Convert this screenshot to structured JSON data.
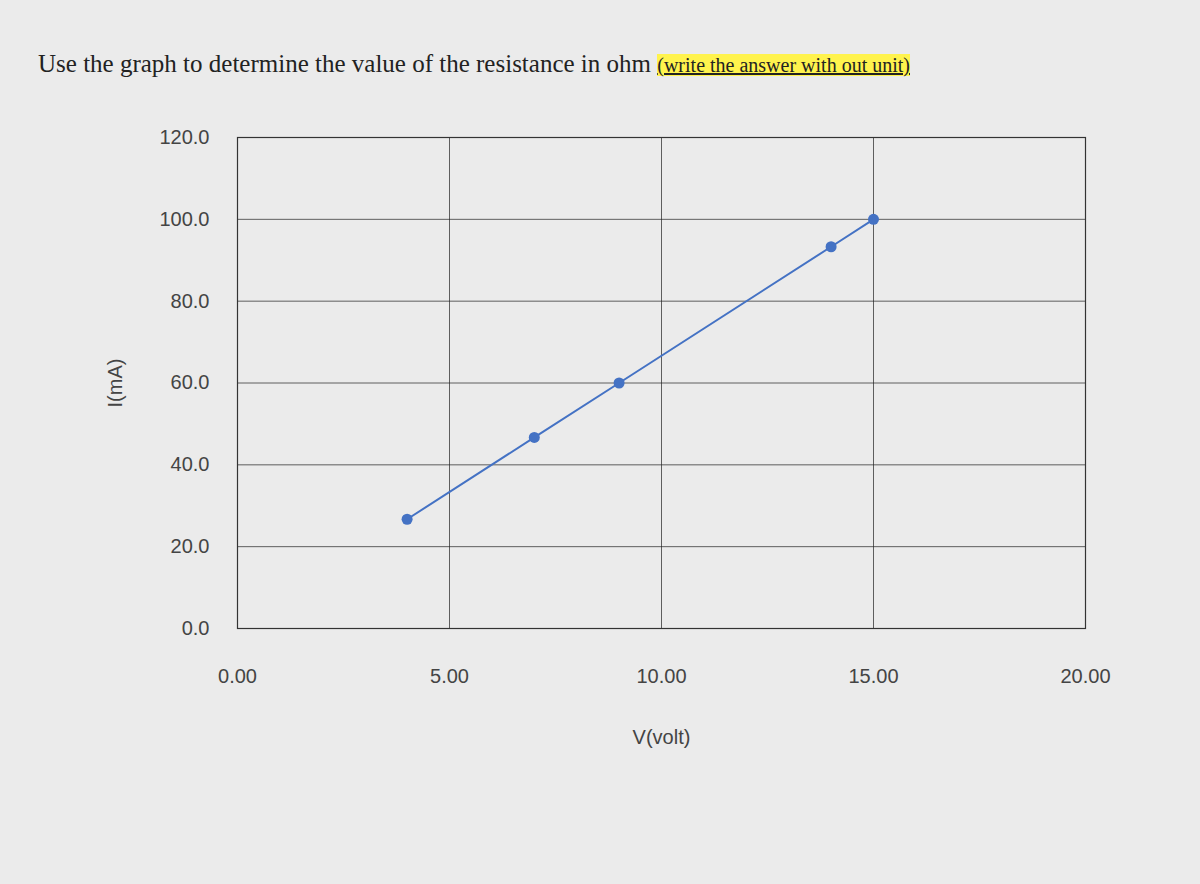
{
  "chart_data": {
    "type": "line",
    "title": "Use the graph to determine the value of the resistance in ohm",
    "annotations": [
      "(write the answer with out unit)"
    ],
    "x_label": "V(volt)",
    "y_label": "I(mA)",
    "x": [
      4,
      7,
      9,
      14,
      15
    ],
    "series": [
      {
        "name": "I",
        "color": "#4472c4",
        "marker": "circle",
        "values": [
          26.7,
          46.7,
          60,
          93.3,
          100
        ]
      }
    ],
    "xlim": [
      0,
      20
    ],
    "xticks": [
      {
        "value": 0,
        "label": "0.00"
      },
      {
        "value": 5,
        "label": "5.00"
      },
      {
        "value": 10,
        "label": "10.00"
      },
      {
        "value": 15,
        "label": "15.00"
      },
      {
        "value": 20,
        "label": "20.00"
      }
    ],
    "ylim": [
      0,
      120
    ],
    "yticks": [
      {
        "value": 0,
        "label": "0.0"
      },
      {
        "value": 20,
        "label": "20.0"
      },
      {
        "value": 40,
        "label": "40.0"
      },
      {
        "value": 60,
        "label": "60.0"
      },
      {
        "value": 80,
        "label": "80.0"
      },
      {
        "value": 100,
        "label": "100.0"
      },
      {
        "value": 120,
        "label": "120.0"
      }
    ],
    "grid": true
  }
}
